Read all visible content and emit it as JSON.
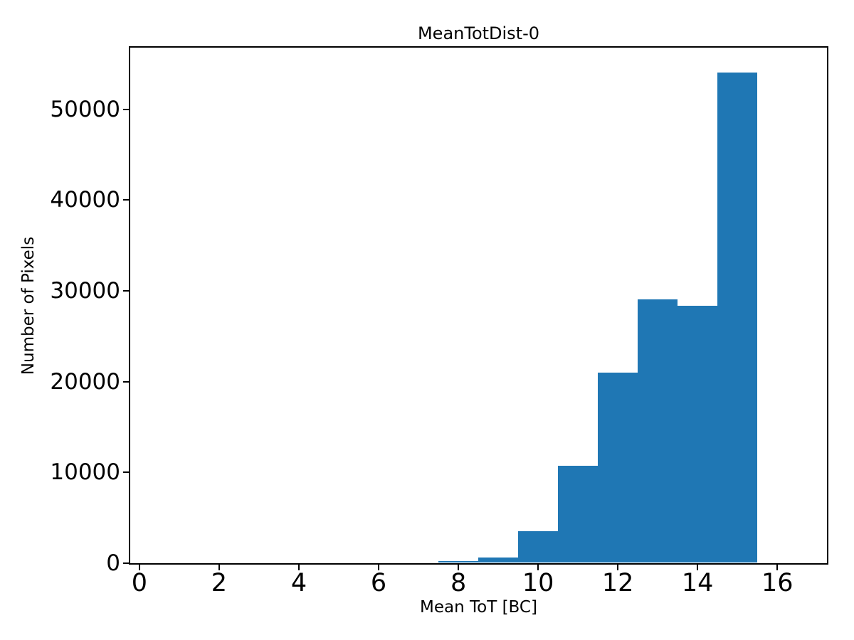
{
  "figure": {
    "background": "#ffffff"
  },
  "chart_data": {
    "type": "bar",
    "title": "MeanTotDist-0",
    "xlabel": "Mean ToT [BC]",
    "ylabel": "Number of Pixels",
    "bar_color": "#1f77b4",
    "bin_width": 1,
    "bin_centers": [
      8,
      9,
      10,
      11,
      12,
      13,
      14,
      15
    ],
    "values": [
      250,
      600,
      3500,
      10700,
      21000,
      29100,
      28400,
      54100
    ],
    "xticks": [
      0,
      2,
      4,
      6,
      8,
      10,
      12,
      14,
      16
    ],
    "yticks": [
      0,
      10000,
      20000,
      30000,
      40000,
      50000
    ],
    "xlim": [
      -0.23,
      17.28
    ],
    "ylim": [
      0,
      56800
    ],
    "grid": false,
    "legend": null
  }
}
